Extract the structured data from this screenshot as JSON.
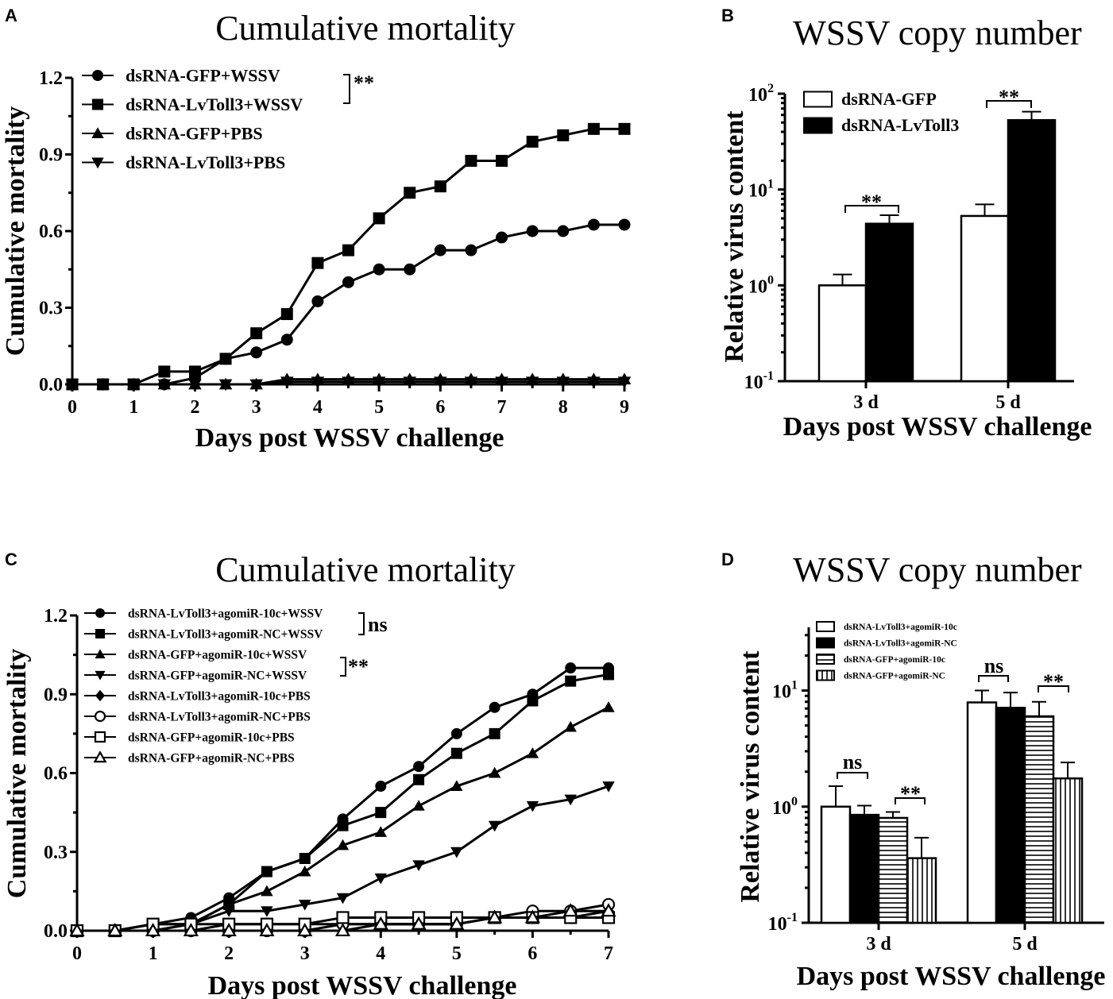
{
  "chart_data": [
    {
      "panel": "A",
      "type": "line",
      "title": "Cumulative mortality",
      "xlabel": "Days post WSSV challenge",
      "ylabel": "Cumulative mortality",
      "xlim": [
        0,
        9
      ],
      "ylim": [
        0,
        1.2
      ],
      "xticks": [
        "0",
        "1",
        "2",
        "3",
        "4",
        "5",
        "6",
        "7",
        "8",
        "9"
      ],
      "yticks": [
        "0.0",
        "0.3",
        "0.6",
        "0.9",
        "1.2"
      ],
      "x": [
        0,
        0.5,
        1,
        1.5,
        2,
        2.5,
        3,
        3.5,
        4,
        4.5,
        5,
        5.5,
        6,
        6.5,
        7,
        7.5,
        8,
        8.5,
        9
      ],
      "series": [
        {
          "name": "dsRNA-GFP+WSSV",
          "marker": "circle",
          "values": [
            0,
            0,
            0,
            0,
            0.025,
            0.1,
            0.125,
            0.175,
            0.325,
            0.4,
            0.45,
            0.45,
            0.525,
            0.525,
            0.575,
            0.6,
            0.6,
            0.625,
            0.625
          ]
        },
        {
          "name": "dsRNA-LvToll3+WSSV",
          "marker": "square",
          "values": [
            0,
            0,
            0,
            0.05,
            0.05,
            0.1,
            0.2,
            0.275,
            0.475,
            0.525,
            0.65,
            0.75,
            0.775,
            0.875,
            0.875,
            0.95,
            0.975,
            1.0,
            1.0
          ]
        },
        {
          "name": "dsRNA-GFP+PBS",
          "marker": "triangle-up",
          "values": [
            0,
            0,
            0,
            0,
            0,
            0,
            0,
            0.02,
            0.02,
            0.02,
            0.02,
            0.02,
            0.02,
            0.02,
            0.02,
            0.02,
            0.02,
            0.02,
            0.02
          ]
        },
        {
          "name": "dsRNA-LvToll3+PBS",
          "marker": "triangle-down",
          "values": [
            0,
            0,
            0,
            0,
            0,
            0,
            0,
            0.01,
            0.01,
            0.01,
            0.01,
            0.01,
            0.01,
            0.01,
            0.01,
            0.01,
            0.01,
            0.01,
            0.01
          ]
        }
      ],
      "annotations": [
        "**"
      ]
    },
    {
      "panel": "B",
      "type": "bar",
      "title": "WSSV copy number",
      "xlabel": "Days post WSSV challenge",
      "ylabel": "Relative virus content",
      "yscale": "log",
      "ylim": [
        0.1,
        100
      ],
      "yticks": [
        {
          "base": "10",
          "exp": "-1"
        },
        {
          "base": "10",
          "exp": "0"
        },
        {
          "base": "10",
          "exp": "1"
        },
        {
          "base": "10",
          "exp": "2"
        }
      ],
      "categories": [
        "3 d",
        "5 d"
      ],
      "series": [
        {
          "name": "dsRNA-GFP",
          "fill": "open",
          "values": [
            1.0,
            5.3
          ],
          "errors": [
            1.3,
            7.0
          ]
        },
        {
          "name": "dsRNA-LvToll3",
          "fill": "solid",
          "values": [
            4.4,
            53
          ],
          "errors": [
            5.4,
            65
          ]
        }
      ],
      "annotations": [
        "**",
        "**"
      ]
    },
    {
      "panel": "C",
      "type": "line",
      "title": "Cumulative mortality",
      "xlabel": "Days post WSSV challenge",
      "ylabel": "Cumulative mortality",
      "xlim": [
        0,
        7
      ],
      "ylim": [
        0,
        1.2
      ],
      "xticks": [
        "0",
        "1",
        "2",
        "3",
        "4",
        "5",
        "6",
        "7"
      ],
      "yticks": [
        "0.0",
        "0.3",
        "0.6",
        "0.9",
        "1.2"
      ],
      "x": [
        0,
        0.5,
        1,
        1.5,
        2,
        2.5,
        3,
        3.5,
        4,
        4.5,
        5,
        5.5,
        6,
        6.5,
        7
      ],
      "series": [
        {
          "name": "dsRNA-LvToll3+agomiR-10c+WSSV",
          "marker": "circle",
          "values": [
            0,
            0,
            0.025,
            0.05,
            0.125,
            0.225,
            0.275,
            0.425,
            0.55,
            0.625,
            0.75,
            0.85,
            0.9,
            1.0,
            1.0
          ]
        },
        {
          "name": "dsRNA-LvToll3+agomiR-NC+WSSV",
          "marker": "square",
          "values": [
            0,
            0,
            0.025,
            0.025,
            0.1,
            0.225,
            0.275,
            0.4,
            0.45,
            0.575,
            0.675,
            0.75,
            0.875,
            0.95,
            0.975
          ]
        },
        {
          "name": "dsRNA-GFP+agomiR-10c+WSSV",
          "marker": "triangle-up",
          "values": [
            0,
            0,
            0,
            0.025,
            0.1,
            0.15,
            0.225,
            0.325,
            0.375,
            0.475,
            0.55,
            0.6,
            0.675,
            0.775,
            0.85
          ]
        },
        {
          "name": "dsRNA-GFP+agomiR-NC+WSSV",
          "marker": "triangle-down",
          "values": [
            0,
            0,
            0,
            0.025,
            0.075,
            0.075,
            0.1,
            0.125,
            0.2,
            0.25,
            0.3,
            0.4,
            0.475,
            0.5,
            0.55
          ]
        },
        {
          "name": "dsRNA-LvToll3+agomiR-10c+PBS",
          "marker": "diamond",
          "values": [
            0,
            0,
            0,
            0,
            0.025,
            0.025,
            0.025,
            0.025,
            0.025,
            0.025,
            0.025,
            0.05,
            0.05,
            0.05,
            0.075
          ]
        },
        {
          "name": "dsRNA-LvToll3+agomiR-NC+PBS",
          "marker": "circle-open",
          "values": [
            0,
            0,
            0,
            0,
            0,
            0,
            0,
            0.025,
            0.025,
            0.025,
            0.025,
            0.05,
            0.075,
            0.075,
            0.1
          ]
        },
        {
          "name": "dsRNA-GFP+agomiR-10c+PBS",
          "marker": "square-open",
          "values": [
            0,
            0,
            0.025,
            0.025,
            0.025,
            0.025,
            0.025,
            0.05,
            0.05,
            0.05,
            0.05,
            0.05,
            0.05,
            0.05,
            0.05
          ]
        },
        {
          "name": "dsRNA-GFP+agomiR-NC+PBS",
          "marker": "triangle-up-open",
          "values": [
            0,
            0,
            0,
            0,
            0,
            0,
            0,
            0,
            0.025,
            0.025,
            0.025,
            0.05,
            0.05,
            0.075,
            0.075
          ]
        }
      ],
      "annotations": [
        "ns",
        "**"
      ]
    },
    {
      "panel": "D",
      "type": "bar",
      "title": "WSSV copy number",
      "xlabel": "Days post WSSV challenge",
      "ylabel": "Relative virus content",
      "yscale": "log",
      "ylim": [
        0.1,
        35
      ],
      "yticks": [
        {
          "base": "10",
          "exp": "-1"
        },
        {
          "base": "10",
          "exp": "0"
        },
        {
          "base": "10",
          "exp": "1"
        }
      ],
      "categories": [
        "3 d",
        "5 d"
      ],
      "series": [
        {
          "name": "dsRNA-LvToll3+agomiR-10c",
          "fill": "open",
          "values": [
            1.0,
            7.9
          ],
          "errors": [
            1.5,
            10
          ]
        },
        {
          "name": "dsRNA-LvToll3+agomiR-NC",
          "fill": "solid",
          "values": [
            0.85,
            7.1
          ],
          "errors": [
            1.02,
            9.6
          ]
        },
        {
          "name": "dsRNA-GFP+agomiR-10c",
          "fill": "horizontal-lines",
          "values": [
            0.8,
            6.0
          ],
          "errors": [
            0.9,
            8.0
          ]
        },
        {
          "name": "dsRNA-GFP+agomiR-NC",
          "fill": "vertical-lines",
          "values": [
            0.36,
            1.75
          ],
          "errors": [
            0.54,
            2.4
          ]
        }
      ],
      "annotations": [
        "ns",
        "**",
        "ns",
        "**"
      ]
    }
  ]
}
